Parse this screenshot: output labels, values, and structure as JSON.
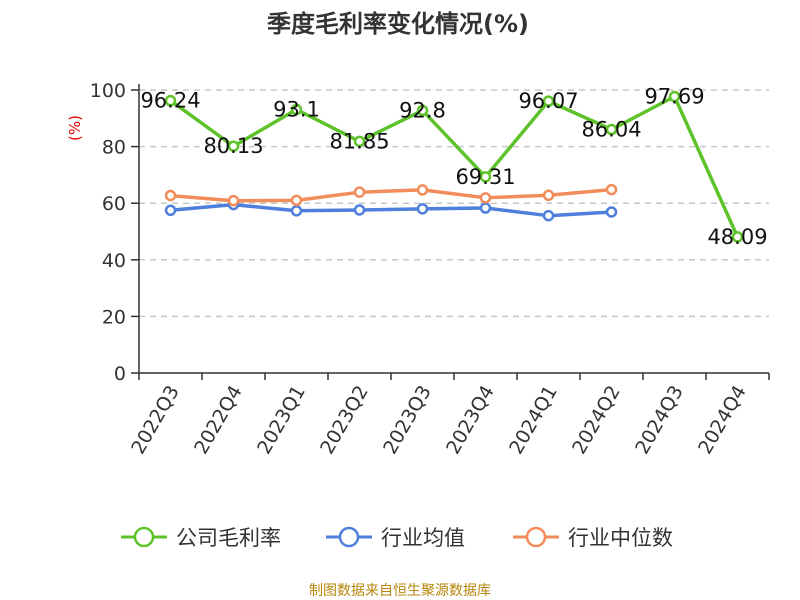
{
  "title": "季度毛利率变化情况(%)",
  "source": "制图数据来自恒生聚源数据库",
  "chart_data": {
    "type": "line",
    "title": "季度毛利率变化情况(%)",
    "ylabel": "(%)",
    "xlabel": "",
    "ylim": [
      0,
      100
    ],
    "yticks": [
      0,
      20,
      40,
      60,
      80,
      100
    ],
    "grid": true,
    "legend_position": "bottom",
    "categories": [
      "2022Q3",
      "2022Q4",
      "2023Q1",
      "2023Q2",
      "2023Q3",
      "2023Q4",
      "2024Q1",
      "2024Q2",
      "2024Q3",
      "2024Q4"
    ],
    "series": [
      {
        "name": "公司毛利率",
        "color": "#5ec32a",
        "show_labels": true,
        "values": [
          96.24,
          80.13,
          93.1,
          81.85,
          92.8,
          69.31,
          96.07,
          86.04,
          97.69,
          48.09
        ],
        "labels": [
          "96.24",
          "80.13",
          "93.1",
          "81.85",
          "92.8",
          "69.31",
          "96.07",
          "86.04",
          "97.69",
          "48.09"
        ]
      },
      {
        "name": "行业均值",
        "color": "#4f7fdc",
        "show_labels": false,
        "values": [
          57.5,
          59.5,
          57.3,
          57.6,
          58.0,
          58.3,
          55.6,
          56.9,
          null,
          null
        ]
      },
      {
        "name": "行业中位数",
        "color": "#f28c5a",
        "show_labels": false,
        "values": [
          62.7,
          60.9,
          61.0,
          63.9,
          64.7,
          61.9,
          62.8,
          64.8,
          null,
          null
        ]
      }
    ]
  }
}
